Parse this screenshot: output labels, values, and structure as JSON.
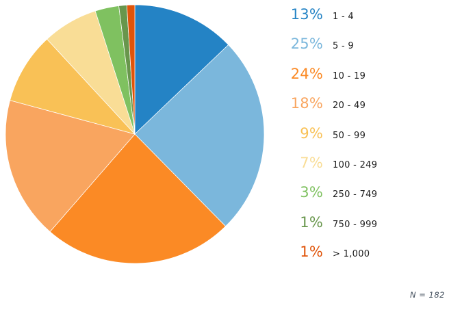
{
  "chart_data": {
    "type": "pie",
    "categories": [
      "1 - 4",
      "5 - 9",
      "10 - 19",
      "20 - 49",
      "50 - 99",
      "100 - 249",
      "250 - 749",
      "750 - 999",
      "> 1,000"
    ],
    "values": [
      13,
      25,
      24,
      18,
      9,
      7,
      3,
      1,
      1
    ],
    "percent_labels": [
      "13%",
      "25%",
      "24%",
      "18%",
      "9%",
      "7%",
      "3%",
      "1%",
      "1%"
    ],
    "colors": [
      "#2483C5",
      "#7BB7DC",
      "#FB8A25",
      "#F9A55F",
      "#F9C156",
      "#F9DD96",
      "#7FC160",
      "#68964C",
      "#E0540A"
    ],
    "start_angle_deg": -90,
    "direction": "clockwise",
    "legend_position": "right",
    "note": "N = 182"
  }
}
